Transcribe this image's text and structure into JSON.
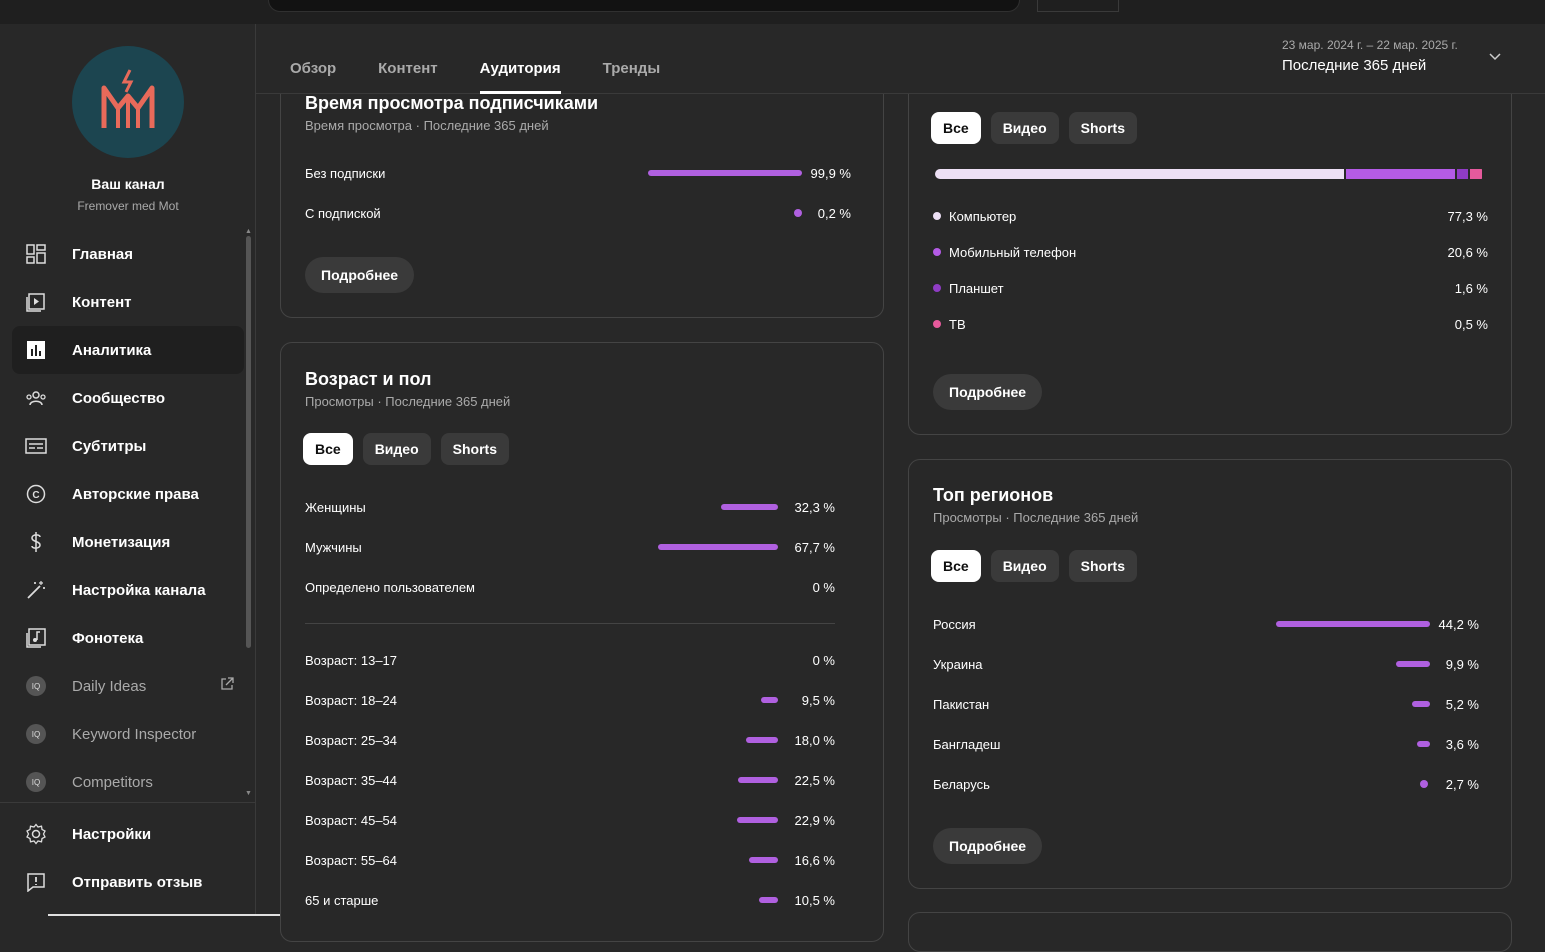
{
  "header": {
    "tabs": [
      {
        "label": "Обзор",
        "active": false
      },
      {
        "label": "Контент",
        "active": false
      },
      {
        "label": "Аудитория",
        "active": true
      },
      {
        "label": "Тренды",
        "active": false
      }
    ],
    "date_range": "23 мар. 2024 г. – 22 мар. 2025 г.",
    "period_label": "Последние 365 дней"
  },
  "sidebar": {
    "channel_title": "Ваш канал",
    "channel_name": "Fremover med Mot",
    "items": [
      {
        "label": "Главная",
        "icon": "dashboard-icon"
      },
      {
        "label": "Контент",
        "icon": "content-icon"
      },
      {
        "label": "Аналитика",
        "icon": "analytics-icon",
        "active": true
      },
      {
        "label": "Сообщество",
        "icon": "community-icon"
      },
      {
        "label": "Субтитры",
        "icon": "subtitles-icon"
      },
      {
        "label": "Авторские права",
        "icon": "copyright-icon"
      },
      {
        "label": "Монетизация",
        "icon": "monetization-icon"
      },
      {
        "label": "Настройка канала",
        "icon": "customization-icon"
      },
      {
        "label": "Фонотека",
        "icon": "audio-library-icon"
      }
    ],
    "extensions": [
      {
        "label": "Daily Ideas",
        "external": true
      },
      {
        "label": "Keyword Inspector"
      },
      {
        "label": "Competitors"
      }
    ],
    "bottom": [
      {
        "label": "Настройки",
        "icon": "settings-icon"
      },
      {
        "label": "Отправить отзыв",
        "icon": "feedback-icon"
      }
    ]
  },
  "subscribers_card": {
    "title": "Время просмотра подписчиками",
    "subtitle": "Время просмотра · Последние 365 дней",
    "rows": [
      {
        "label": "Без подписки",
        "value": "99,9 %",
        "fraction": 0.999
      },
      {
        "label": "С подпиской",
        "value": "0,2 %",
        "fraction": 0.002
      }
    ],
    "more": "Подробнее"
  },
  "age_gender_card": {
    "title": "Возраст и пол",
    "subtitle": "Просмотры · Последние 365 дней",
    "chips": [
      "Все",
      "Видео",
      "Shorts"
    ],
    "gender": [
      {
        "label": "Женщины",
        "value": "32,3 %",
        "fraction": 0.323
      },
      {
        "label": "Мужчины",
        "value": "67,7 %",
        "fraction": 0.677
      },
      {
        "label": "Определено пользователем",
        "value": "0 %",
        "fraction": 0
      }
    ],
    "ages": [
      {
        "label": "Возраст: 13–17",
        "value": "0 %",
        "fraction": 0
      },
      {
        "label": "Возраст: 18–24",
        "value": "9,5 %",
        "fraction": 0.095
      },
      {
        "label": "Возраст: 25–34",
        "value": "18,0 %",
        "fraction": 0.18
      },
      {
        "label": "Возраст: 35–44",
        "value": "22,5 %",
        "fraction": 0.225
      },
      {
        "label": "Возраст: 45–54",
        "value": "22,9 %",
        "fraction": 0.229
      },
      {
        "label": "Возраст: 55–64",
        "value": "16,6 %",
        "fraction": 0.166
      },
      {
        "label": "65 и старше",
        "value": "10,5 %",
        "fraction": 0.105
      }
    ]
  },
  "devices_card": {
    "chips": [
      "Все",
      "Видео",
      "Shorts"
    ],
    "rows": [
      {
        "label": "Компьютер",
        "value": "77,3 %",
        "fraction": 0.773,
        "color": "#ede0f5"
      },
      {
        "label": "Мобильный телефон",
        "value": "20,6 %",
        "fraction": 0.206,
        "color": "#b45be6"
      },
      {
        "label": "Планшет",
        "value": "1,6 %",
        "fraction": 0.016,
        "color": "#8f3cc4"
      },
      {
        "label": "ТВ",
        "value": "0,5 %",
        "fraction": 0.005,
        "color": "#e65a9c"
      }
    ],
    "more": "Подробнее"
  },
  "regions_card": {
    "title": "Топ регионов",
    "subtitle": "Просмотры · Последние 365 дней",
    "chips": [
      "Все",
      "Видео",
      "Shorts"
    ],
    "rows": [
      {
        "label": "Россия",
        "value": "44,2 %",
        "fraction": 0.442
      },
      {
        "label": "Украина",
        "value": "9,9 %",
        "fraction": 0.099
      },
      {
        "label": "Пакистан",
        "value": "5,2 %",
        "fraction": 0.052
      },
      {
        "label": "Бангладеш",
        "value": "3,6 %",
        "fraction": 0.036
      },
      {
        "label": "Беларусь",
        "value": "2,7 %",
        "fraction": 0.027
      }
    ],
    "more": "Подробнее"
  },
  "colors": {
    "accent": "#b060e0",
    "background": "#282828",
    "card_border": "#444444"
  }
}
